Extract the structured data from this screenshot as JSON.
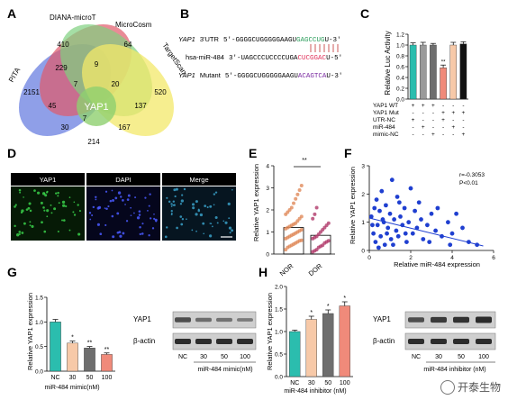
{
  "panels": {
    "A": {
      "label": "A",
      "sets": [
        "PITA",
        "DIANA-microT",
        "MicroCosm",
        "TargetScan"
      ],
      "center_label": "YAP1",
      "counts": [
        "410",
        "64",
        "2151",
        "229",
        "9",
        "520",
        "7",
        "20",
        "45",
        "7",
        "137",
        "30",
        "167",
        "214"
      ],
      "colors": {
        "pita": "#6a7fe0",
        "diana": "#e05a6a",
        "microcosm": "#7fd07f",
        "targetscan": "#f3e86a",
        "bottom": "#8fb050"
      }
    },
    "B": {
      "label": "B",
      "rows": [
        {
          "tag": "YAP1",
          "tag2": "3'UTR",
          "seq_left": "5'-GGGGCUGGGGGAAGU",
          "seq_hl": "GAGCCUG",
          "seq_right": "U-3'",
          "hl_color": "#2a9d5a"
        },
        {
          "tag": "",
          "tag2": "hsa-miR-484",
          "seq_left": "3'-UAGCCCUCCCCUGA",
          "seq_hl": "CUCGGAC",
          "seq_right": "U-5'",
          "hl_color": "#e0315a"
        },
        {
          "tag": "YAP1",
          "tag2": "Mutant",
          "seq_left": "5'-GGGGCUGGGGGAAGU",
          "seq_hl": "ACAGTCA",
          "seq_right": "U-3'",
          "hl_color": "#7a2aa0"
        }
      ]
    },
    "C": {
      "label": "C",
      "ylabel": "Relative Luc Activity",
      "yticks": [
        "0.0",
        "0.2",
        "0.4",
        "0.6",
        "0.8",
        "1.0",
        "1.2"
      ],
      "row_labels": [
        "YAP1 WT",
        "YAP1 Mut",
        "UTR-NC",
        "miR-484",
        "mimic-NC"
      ],
      "signs": [
        [
          "+",
          "+",
          "+",
          "-",
          "-",
          "-"
        ],
        [
          "-",
          "-",
          "-",
          "+",
          "+",
          "+"
        ],
        [
          "+",
          "-",
          "-",
          "+",
          "-",
          "-"
        ],
        [
          "-",
          "+",
          "-",
          "-",
          "+",
          "-"
        ],
        [
          "-",
          "-",
          "+",
          "-",
          "-",
          "+"
        ]
      ],
      "sig": "**"
    },
    "D": {
      "label": "D",
      "titles": [
        "YAP1",
        "DAPI",
        "Merge"
      ]
    },
    "E": {
      "label": "E",
      "ylabel": "Relative YAP1 expression",
      "yticks": [
        "0",
        "1",
        "2",
        "3",
        "4"
      ],
      "groups": [
        "NOR",
        "DOR"
      ],
      "sig": "**"
    },
    "F": {
      "label": "F",
      "ylabel": "Relative YAP1 expression",
      "xlabel": "Relative miR-484 expression",
      "xticks": [
        "0",
        "2",
        "4",
        "6"
      ],
      "yticks": [
        "0",
        "1",
        "2",
        "3"
      ],
      "stat_r": "r=-0.3053",
      "stat_p": "P<0.01"
    },
    "G": {
      "label": "G",
      "ylabel": "Relative YAP1 expression",
      "yticks": [
        "0.0",
        "0.5",
        "1.0",
        "1.5"
      ],
      "xticks": [
        "NC",
        "30",
        "50",
        "100"
      ],
      "xlabel": "miR-484 mimic(nM)",
      "sig": [
        "",
        "*",
        "**",
        "**"
      ],
      "blot_rows": [
        "YAP1",
        "β-actin"
      ],
      "blot_lanes": [
        "NC",
        "30",
        "50",
        "100"
      ],
      "blot_xlabel": "miR-484 mimic(nM)"
    },
    "H": {
      "label": "H",
      "ylabel": "Relative YAP1 expression",
      "yticks": [
        "0.0",
        "0.5",
        "1.0",
        "1.5",
        "2.0"
      ],
      "xticks": [
        "NC",
        "30",
        "50",
        "100"
      ],
      "xlabel": "miR-484 inhibitor (nM)",
      "sig": [
        "",
        "*",
        "*",
        "*"
      ],
      "blot_rows": [
        "YAP1",
        "β-actin"
      ],
      "blot_lanes": [
        "NC",
        "30",
        "50",
        "100"
      ],
      "blot_xlabel": "miR-484 inhibitor (nM)"
    }
  },
  "watermark": "开泰生物",
  "chart_data": [
    {
      "panel": "C",
      "type": "bar",
      "categories": [
        "1",
        "2",
        "3",
        "4",
        "5",
        "6"
      ],
      "values": [
        1.0,
        1.0,
        1.0,
        0.58,
        1.0,
        1.02
      ],
      "errors": [
        0.04,
        0.05,
        0.03,
        0.05,
        0.05,
        0.04
      ],
      "colors": [
        "#2bbdae",
        "#9a9a9a",
        "#6e6e6e",
        "#f08a7a",
        "#f7c9a8",
        "#111111"
      ],
      "ylim": [
        0,
        1.2
      ]
    },
    {
      "panel": "E",
      "type": "scatter",
      "series": [
        {
          "name": "NOR",
          "mean": 1.2,
          "values": [
            0.2,
            0.3,
            0.35,
            0.4,
            0.45,
            0.5,
            0.55,
            0.6,
            0.62,
            0.7,
            0.75,
            0.8,
            0.85,
            0.9,
            0.95,
            1.0,
            1.05,
            1.1,
            1.15,
            1.2,
            1.25,
            1.3,
            1.35,
            1.4,
            1.5,
            1.6,
            1.7,
            1.8,
            1.9,
            2.0,
            2.1,
            2.3,
            2.5,
            2.7,
            2.9,
            3.1
          ]
        },
        {
          "name": "DOR",
          "mean": 0.85,
          "values": [
            0.1,
            0.15,
            0.2,
            0.3,
            0.35,
            0.4,
            0.5,
            0.55,
            0.6,
            0.7,
            0.75,
            0.8,
            0.9,
            1.0,
            1.1,
            1.2,
            1.3,
            1.4,
            1.6,
            1.8,
            2.1
          ]
        }
      ],
      "ylim": [
        0,
        4
      ]
    },
    {
      "panel": "F",
      "type": "scatter",
      "points": [
        [
          0.1,
          1.2
        ],
        [
          0.2,
          0.6
        ],
        [
          0.3,
          0.3
        ],
        [
          0.35,
          1.8
        ],
        [
          0.4,
          0.9
        ],
        [
          0.5,
          1.4
        ],
        [
          0.55,
          0.5
        ],
        [
          0.6,
          2.1
        ],
        [
          0.7,
          1.0
        ],
        [
          0.75,
          0.2
        ],
        [
          0.8,
          1.6
        ],
        [
          0.9,
          0.8
        ],
        [
          1.0,
          1.3
        ],
        [
          1.05,
          0.4
        ],
        [
          1.1,
          2.5
        ],
        [
          1.2,
          1.1
        ],
        [
          1.3,
          0.7
        ],
        [
          1.35,
          1.9
        ],
        [
          1.4,
          0.5
        ],
        [
          1.5,
          1.2
        ],
        [
          1.6,
          0.9
        ],
        [
          1.7,
          1.5
        ],
        [
          1.8,
          0.3
        ],
        [
          1.9,
          1.0
        ],
        [
          2.0,
          2.2
        ],
        [
          2.1,
          0.6
        ],
        [
          2.2,
          1.4
        ],
        [
          2.3,
          0.8
        ],
        [
          2.5,
          1.1
        ],
        [
          2.6,
          0.4
        ],
        [
          2.8,
          0.9
        ],
        [
          3.0,
          1.3
        ],
        [
          3.2,
          0.7
        ],
        [
          3.5,
          0.5
        ],
        [
          3.8,
          1.0
        ],
        [
          4.0,
          0.6
        ],
        [
          4.2,
          1.3
        ],
        [
          4.5,
          0.8
        ],
        [
          4.8,
          0.3
        ],
        [
          5.2,
          0.2
        ],
        [
          0.15,
          0.9
        ],
        [
          0.25,
          1.5
        ],
        [
          0.45,
          0.1
        ],
        [
          0.65,
          1.1
        ],
        [
          0.85,
          0.6
        ],
        [
          1.15,
          0.2
        ],
        [
          1.45,
          1.7
        ],
        [
          1.75,
          0.6
        ],
        [
          2.4,
          1.7
        ],
        [
          2.9,
          0.3
        ],
        [
          3.3,
          1.5
        ],
        [
          3.9,
          0.2
        ]
      ],
      "fit": {
        "slope": -0.18,
        "intercept": 1.15
      },
      "xlim": [
        0,
        6
      ],
      "ylim": [
        0,
        3
      ]
    },
    {
      "panel": "G",
      "type": "bar",
      "categories": [
        "NC",
        "30",
        "50",
        "100"
      ],
      "values": [
        1.0,
        0.57,
        0.47,
        0.34
      ],
      "errors": [
        0.05,
        0.04,
        0.03,
        0.03
      ],
      "colors": [
        "#2bbdae",
        "#f7c9a8",
        "#6e6e6e",
        "#f08a7a"
      ],
      "ylim": [
        0,
        1.5
      ]
    },
    {
      "panel": "H",
      "type": "bar",
      "categories": [
        "NC",
        "30",
        "50",
        "100"
      ],
      "values": [
        1.0,
        1.27,
        1.4,
        1.57
      ],
      "errors": [
        0.03,
        0.07,
        0.08,
        0.09
      ],
      "colors": [
        "#2bbdae",
        "#f7c9a8",
        "#6e6e6e",
        "#f08a7a"
      ],
      "ylim": [
        0,
        2.0
      ]
    }
  ]
}
